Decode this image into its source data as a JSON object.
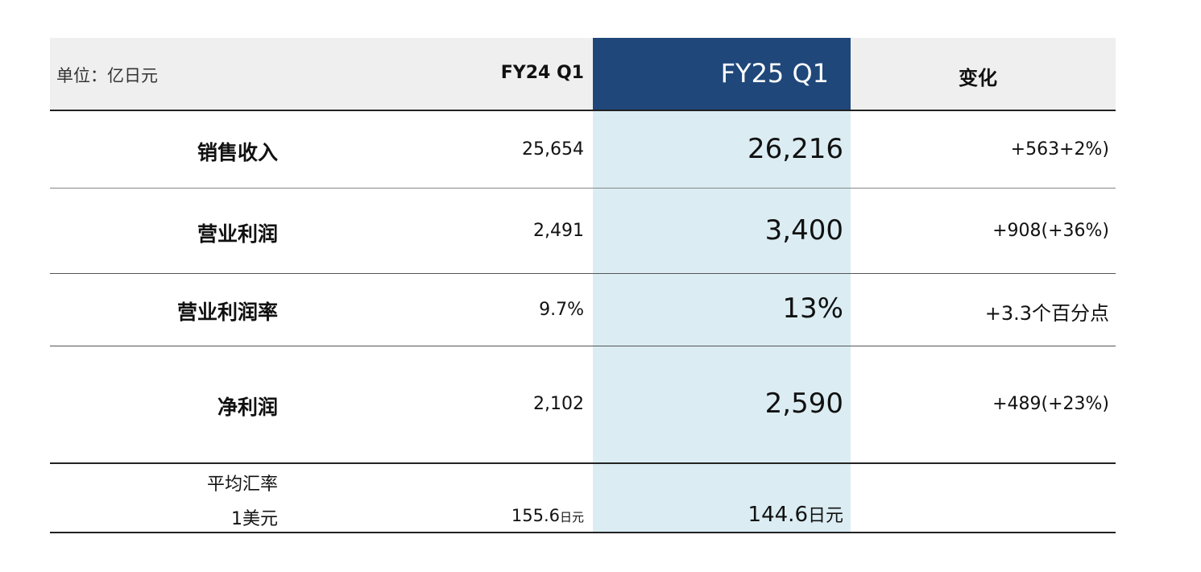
{
  "header": {
    "unit": "单位：亿日元",
    "fy24": "FY24 Q1",
    "fy25": "FY25 Q1",
    "change": "变化"
  },
  "rows": [
    {
      "label": "销售收入",
      "fy24": "25,654",
      "fy25": "26,216",
      "change": "+563+2%)"
    },
    {
      "label": "营业利润",
      "fy24": "2,491",
      "fy25": "3,400",
      "change": "+908(+36%)"
    },
    {
      "label": "营业利润率",
      "fy24": "9.7%",
      "fy25": "13%",
      "change": "+3.3个百分点"
    },
    {
      "label": "净利润",
      "fy24": "2,102",
      "fy25": "2,590",
      "change": "+489(+23%)"
    }
  ],
  "fx": {
    "label1": "平均汇率",
    "label2": "1美元",
    "fy24_value": "155.6",
    "fy25_value": "144.6",
    "unit": "日元"
  },
  "colors": {
    "header_bg": "#efefef",
    "fy25_header": "#1f477a",
    "fy25_column": "#dbedf3"
  }
}
